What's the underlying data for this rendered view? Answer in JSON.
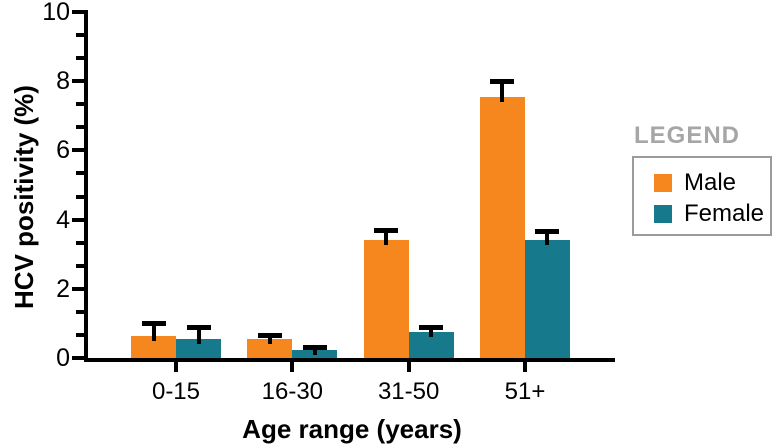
{
  "chart_data": {
    "type": "bar",
    "title": "",
    "xlabel": "Age range (years)",
    "ylabel": "HCV positivity (%)",
    "categories": [
      "0-15",
      "16-30",
      "31-50",
      "51+"
    ],
    "series": [
      {
        "name": "Male",
        "color": "#F6871F",
        "values": [
          0.65,
          0.55,
          3.4,
          7.55
        ],
        "errors": [
          0.35,
          0.12,
          0.3,
          0.45
        ]
      },
      {
        "name": "Female",
        "color": "#16798C",
        "values": [
          0.55,
          0.22,
          0.75,
          3.4
        ],
        "errors": [
          0.35,
          0.1,
          0.15,
          0.27
        ]
      }
    ],
    "ylim": [
      0,
      10
    ],
    "y_major_ticks": [
      0,
      2,
      4,
      6,
      8,
      10
    ],
    "y_minor_divisions": 3,
    "error_bars": "upper",
    "grid": false,
    "legend_position": "right"
  },
  "legend": {
    "title": "LEGEND",
    "items": [
      {
        "label": "Male",
        "color": "#F6871F",
        "icon": "male-swatch-icon"
      },
      {
        "label": "Female",
        "color": "#16798C",
        "icon": "female-swatch-icon"
      }
    ]
  },
  "colors": {
    "axis": "#000000",
    "background": "#FFFFFF",
    "legend_title": "#A6A6A6",
    "legend_border": "#9B9B9B"
  }
}
